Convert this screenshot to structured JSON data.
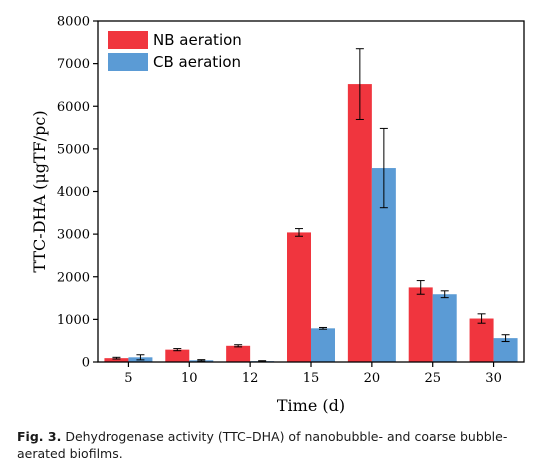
{
  "chart_data": {
    "type": "bar",
    "xlabel": "Time (d)",
    "ylabel": "TTC-DHA (μgTF/pc)",
    "ylim": [
      0,
      8000
    ],
    "yticks": [
      0,
      1000,
      2000,
      3000,
      4000,
      5000,
      6000,
      7000,
      8000
    ],
    "categories": [
      "5",
      "10",
      "12",
      "15",
      "20",
      "25",
      "30"
    ],
    "legend_position": "top-left",
    "grid": false,
    "series": [
      {
        "name": "NB aeration",
        "color": "#f0353e",
        "values": [
          90,
          290,
          380,
          3040,
          6520,
          1750,
          1020
        ],
        "errors": [
          20,
          25,
          25,
          90,
          830,
          160,
          110
        ]
      },
      {
        "name": "CB aeration",
        "color": "#5b9bd5",
        "values": [
          110,
          40,
          20,
          790,
          4550,
          1590,
          560
        ],
        "errors": [
          60,
          15,
          10,
          20,
          930,
          80,
          80
        ]
      }
    ]
  },
  "caption": {
    "label": "Fig. 3.",
    "text": "Dehydrogenase activity (TTC–DHA) of nanobubble- and coarse bubble-aerated biofilms."
  }
}
